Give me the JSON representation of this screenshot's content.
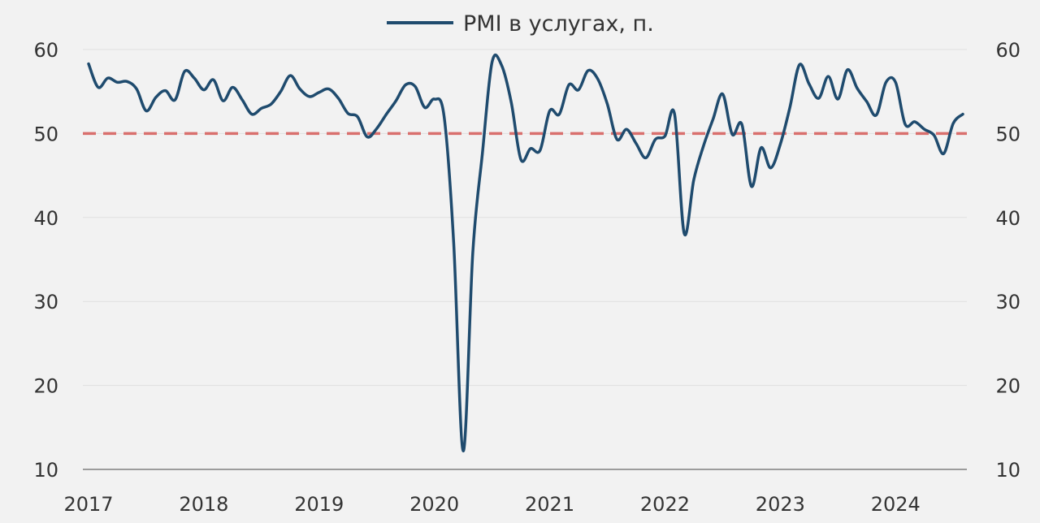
{
  "chart_data": {
    "type": "line",
    "title": "",
    "xlabel": "",
    "ylabel": "",
    "ylim": [
      10,
      60
    ],
    "y_ticks": [
      "10",
      "20",
      "30",
      "40",
      "50",
      "60"
    ],
    "x_tick_labels": [
      "2017",
      "2018",
      "2019",
      "2020",
      "2021",
      "2022",
      "2023",
      "2024"
    ],
    "x_range": [
      "2017-01",
      "2024-08"
    ],
    "secondary_y_axis": "right, same scale",
    "grid": "horizontal",
    "legend": {
      "position": "top",
      "entries": [
        "PMI в услугах, п."
      ]
    },
    "reference_line": {
      "y": 50,
      "style": "dashed",
      "color": "#d9706e"
    },
    "series": [
      {
        "name": "PMI в услугах, п.",
        "color": "#1f4b6e",
        "x": [
          "2017-01",
          "2017-02",
          "2017-03",
          "2017-04",
          "2017-05",
          "2017-06",
          "2017-07",
          "2017-08",
          "2017-09",
          "2017-10",
          "2017-11",
          "2017-12",
          "2018-01",
          "2018-02",
          "2018-03",
          "2018-04",
          "2018-05",
          "2018-06",
          "2018-07",
          "2018-08",
          "2018-09",
          "2018-10",
          "2018-11",
          "2018-12",
          "2019-01",
          "2019-02",
          "2019-03",
          "2019-04",
          "2019-05",
          "2019-06",
          "2019-07",
          "2019-08",
          "2019-09",
          "2019-10",
          "2019-11",
          "2019-12",
          "2020-01",
          "2020-02",
          "2020-03",
          "2020-04",
          "2020-05",
          "2020-06",
          "2020-07",
          "2020-08",
          "2020-09",
          "2020-10",
          "2020-11",
          "2020-12",
          "2021-01",
          "2021-02",
          "2021-03",
          "2021-04",
          "2021-05",
          "2021-06",
          "2021-07",
          "2021-08",
          "2021-09",
          "2021-10",
          "2021-11",
          "2021-12",
          "2022-01",
          "2022-02",
          "2022-03",
          "2022-04",
          "2022-05",
          "2022-06",
          "2022-07",
          "2022-08",
          "2022-09",
          "2022-10",
          "2022-11",
          "2022-12",
          "2023-01",
          "2023-02",
          "2023-03",
          "2023-04",
          "2023-05",
          "2023-06",
          "2023-07",
          "2023-08",
          "2023-09",
          "2023-10",
          "2023-11",
          "2023-12",
          "2024-01",
          "2024-02",
          "2024-03",
          "2024-04",
          "2024-05",
          "2024-06",
          "2024-07",
          "2024-08"
        ],
        "values": [
          58.3,
          55.5,
          56.6,
          56.1,
          56.2,
          55.3,
          52.7,
          54.3,
          55.1,
          54.0,
          57.4,
          56.6,
          55.2,
          56.4,
          53.9,
          55.5,
          54.0,
          52.3,
          53.0,
          53.5,
          55.0,
          56.9,
          55.3,
          54.4,
          54.9,
          55.3,
          54.2,
          52.4,
          52.0,
          49.6,
          50.6,
          52.3,
          53.9,
          55.8,
          55.6,
          53.1,
          54.1,
          52.1,
          37.1,
          12.2,
          35.9,
          47.7,
          58.5,
          58.1,
          53.7,
          46.9,
          48.2,
          48.0,
          52.7,
          52.3,
          55.8,
          55.2,
          57.5,
          56.5,
          53.5,
          49.3,
          50.5,
          48.8,
          47.1,
          49.3,
          49.7,
          52.3,
          38.1,
          44.5,
          48.5,
          51.7,
          54.7,
          49.9,
          51.1,
          43.7,
          48.3,
          45.9,
          48.7,
          53.1,
          58.2,
          55.9,
          54.2,
          56.8,
          54.1,
          57.6,
          55.4,
          53.8,
          52.2,
          56.1,
          56.1,
          51.1,
          51.4,
          50.5,
          49.8,
          47.6,
          51.2,
          52.3
        ]
      }
    ]
  },
  "colors": {
    "background": "#f2f2f2",
    "series": "#1f4b6e",
    "reference_line": "#d9706e",
    "grid": "#e0e0e0",
    "axis": "#808080",
    "text": "#333333"
  }
}
